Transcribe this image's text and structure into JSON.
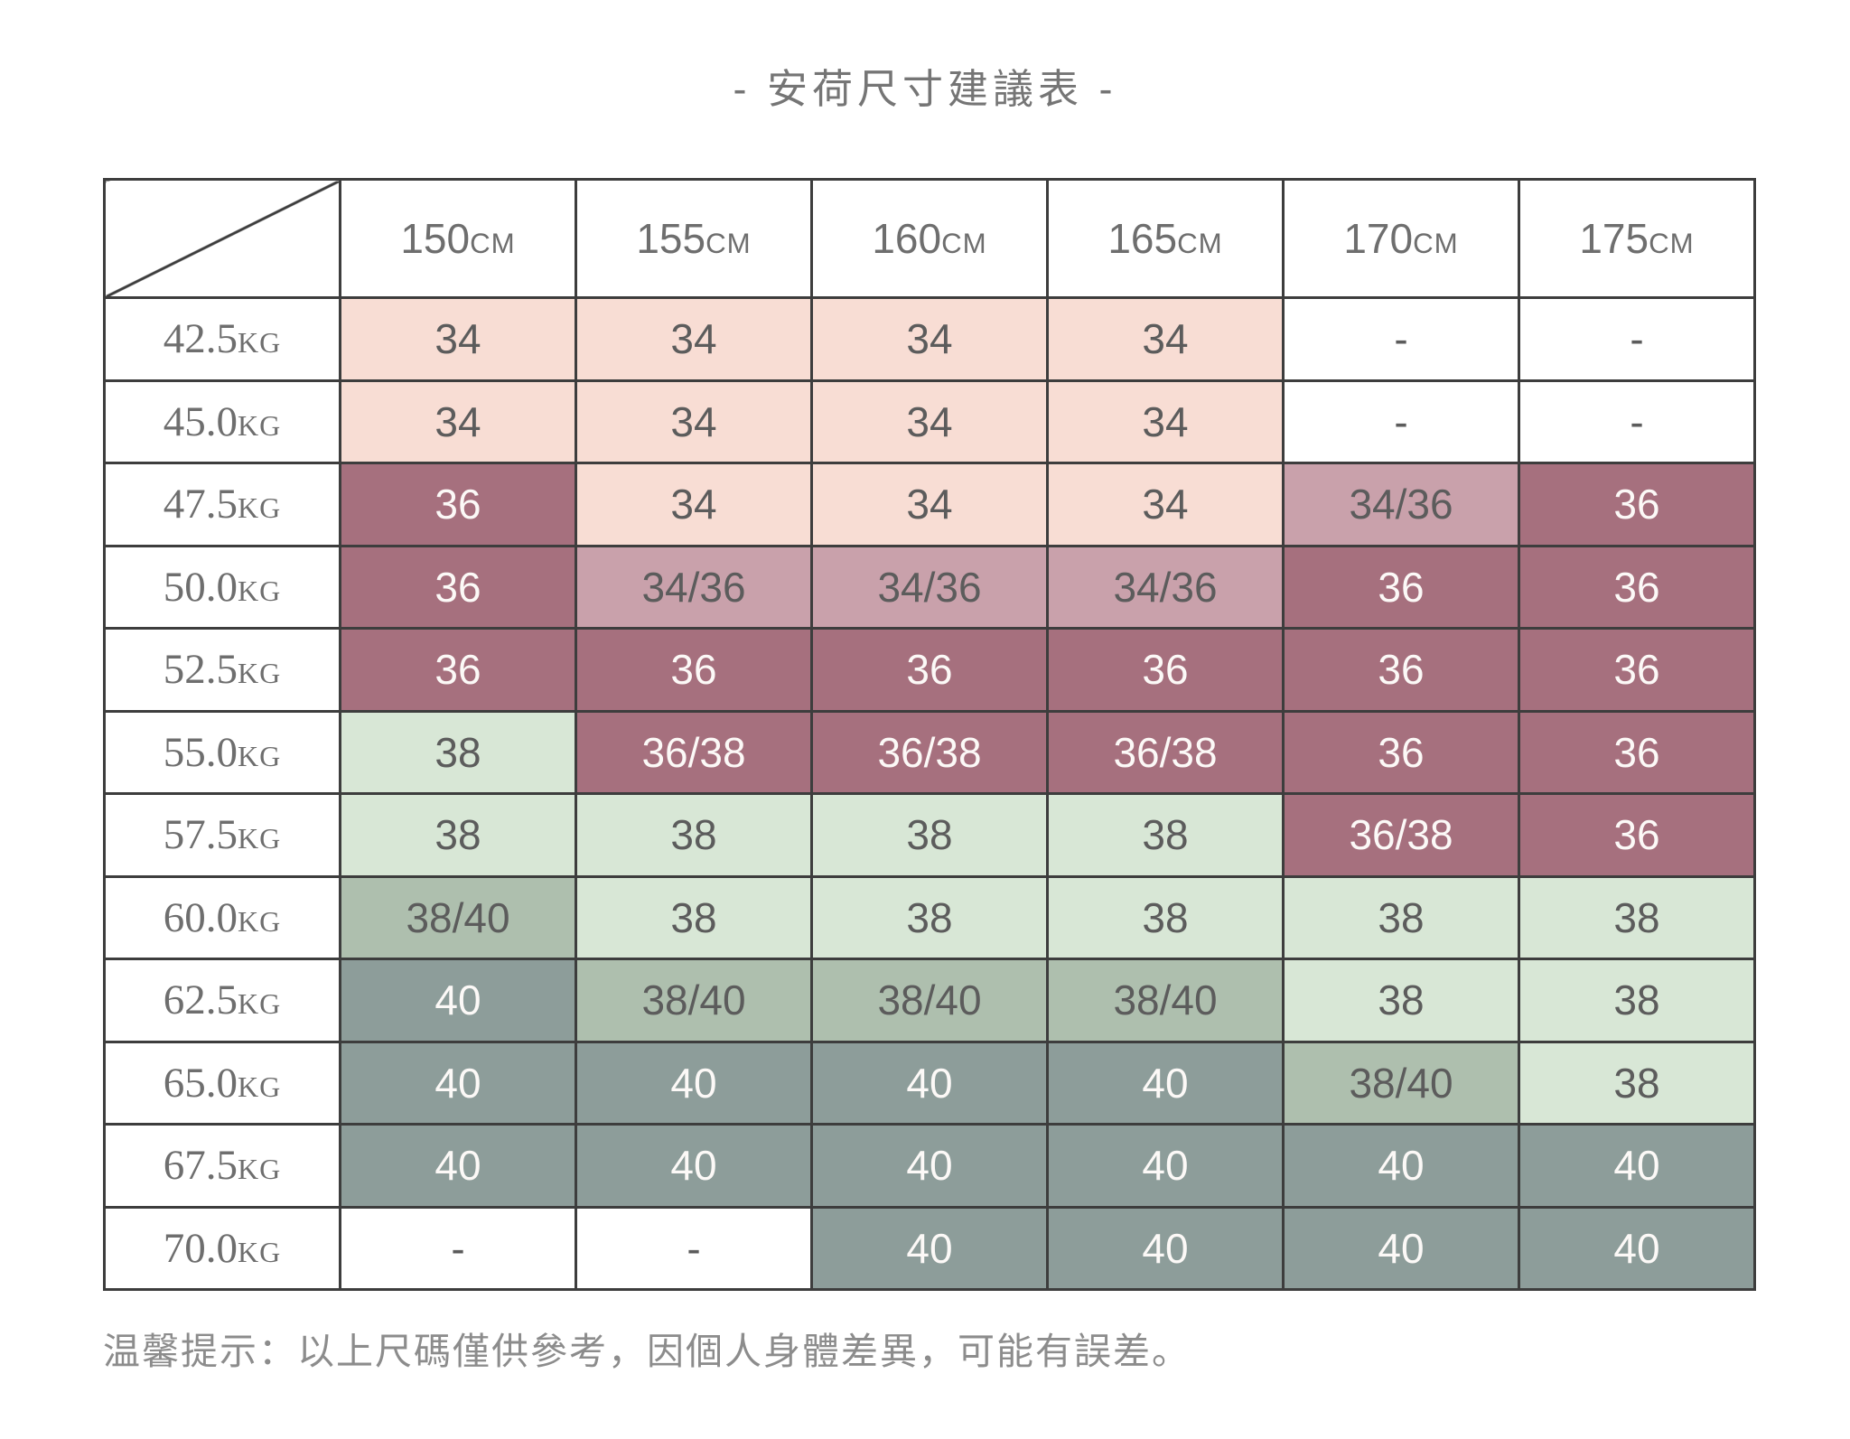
{
  "title": "- 安荷尺寸建議表 -",
  "footer_note": "温馨提示：以上尺碼僅供參考，因個人身體差異，可能有誤差。",
  "palette": {
    "pink": "#f8ddd4",
    "mauve_mid": "#c9a1ab",
    "mauve_dark": "#a6707e",
    "green_light": "#d8e7d6",
    "sage": "#aebfae",
    "gray_green": "#8d9d9a",
    "white": "#ffffff",
    "text_dark": "#5c5c5c",
    "text_light": "#fcf9f7",
    "border": "#3d3d3d"
  },
  "table": {
    "height_headers": [
      {
        "num": "150",
        "unit": "CM"
      },
      {
        "num": "155",
        "unit": "CM"
      },
      {
        "num": "160",
        "unit": "CM"
      },
      {
        "num": "165",
        "unit": "CM"
      },
      {
        "num": "170",
        "unit": "CM"
      },
      {
        "num": "175",
        "unit": "CM"
      }
    ],
    "rows": [
      {
        "weight_num": "42.5",
        "weight_unit": "KG",
        "cells": [
          {
            "v": "34",
            "c": "pink",
            "t": "dark"
          },
          {
            "v": "34",
            "c": "pink",
            "t": "dark"
          },
          {
            "v": "34",
            "c": "pink",
            "t": "dark"
          },
          {
            "v": "34",
            "c": "pink",
            "t": "dark"
          },
          {
            "v": "-",
            "c": "white",
            "t": "dark"
          },
          {
            "v": "-",
            "c": "white",
            "t": "dark"
          }
        ]
      },
      {
        "weight_num": "45.0",
        "weight_unit": "KG",
        "cells": [
          {
            "v": "34",
            "c": "pink",
            "t": "dark"
          },
          {
            "v": "34",
            "c": "pink",
            "t": "dark"
          },
          {
            "v": "34",
            "c": "pink",
            "t": "dark"
          },
          {
            "v": "34",
            "c": "pink",
            "t": "dark"
          },
          {
            "v": "-",
            "c": "white",
            "t": "dark"
          },
          {
            "v": "-",
            "c": "white",
            "t": "dark"
          }
        ]
      },
      {
        "weight_num": "47.5",
        "weight_unit": "KG",
        "cells": [
          {
            "v": "36",
            "c": "mauve_dark",
            "t": "light"
          },
          {
            "v": "34",
            "c": "pink",
            "t": "dark"
          },
          {
            "v": "34",
            "c": "pink",
            "t": "dark"
          },
          {
            "v": "34",
            "c": "pink",
            "t": "dark"
          },
          {
            "v": "34/36",
            "c": "mauve_mid",
            "t": "dark"
          },
          {
            "v": "36",
            "c": "mauve_dark",
            "t": "light"
          }
        ]
      },
      {
        "weight_num": "50.0",
        "weight_unit": "KG",
        "cells": [
          {
            "v": "36",
            "c": "mauve_dark",
            "t": "light"
          },
          {
            "v": "34/36",
            "c": "mauve_mid",
            "t": "dark"
          },
          {
            "v": "34/36",
            "c": "mauve_mid",
            "t": "dark"
          },
          {
            "v": "34/36",
            "c": "mauve_mid",
            "t": "dark"
          },
          {
            "v": "36",
            "c": "mauve_dark",
            "t": "light"
          },
          {
            "v": "36",
            "c": "mauve_dark",
            "t": "light"
          }
        ]
      },
      {
        "weight_num": "52.5",
        "weight_unit": "KG",
        "cells": [
          {
            "v": "36",
            "c": "mauve_dark",
            "t": "light"
          },
          {
            "v": "36",
            "c": "mauve_dark",
            "t": "light"
          },
          {
            "v": "36",
            "c": "mauve_dark",
            "t": "light"
          },
          {
            "v": "36",
            "c": "mauve_dark",
            "t": "light"
          },
          {
            "v": "36",
            "c": "mauve_dark",
            "t": "light"
          },
          {
            "v": "36",
            "c": "mauve_dark",
            "t": "light"
          }
        ]
      },
      {
        "weight_num": "55.0",
        "weight_unit": "KG",
        "cells": [
          {
            "v": "38",
            "c": "green_light",
            "t": "dark"
          },
          {
            "v": "36/38",
            "c": "mauve_dark",
            "t": "light"
          },
          {
            "v": "36/38",
            "c": "mauve_dark",
            "t": "light"
          },
          {
            "v": "36/38",
            "c": "mauve_dark",
            "t": "light"
          },
          {
            "v": "36",
            "c": "mauve_dark",
            "t": "light"
          },
          {
            "v": "36",
            "c": "mauve_dark",
            "t": "light"
          }
        ]
      },
      {
        "weight_num": "57.5",
        "weight_unit": "KG",
        "cells": [
          {
            "v": "38",
            "c": "green_light",
            "t": "dark"
          },
          {
            "v": "38",
            "c": "green_light",
            "t": "dark"
          },
          {
            "v": "38",
            "c": "green_light",
            "t": "dark"
          },
          {
            "v": "38",
            "c": "green_light",
            "t": "dark"
          },
          {
            "v": "36/38",
            "c": "mauve_dark",
            "t": "light"
          },
          {
            "v": "36",
            "c": "mauve_dark",
            "t": "light"
          }
        ]
      },
      {
        "weight_num": "60.0",
        "weight_unit": "KG",
        "cells": [
          {
            "v": "38/40",
            "c": "sage",
            "t": "dark"
          },
          {
            "v": "38",
            "c": "green_light",
            "t": "dark"
          },
          {
            "v": "38",
            "c": "green_light",
            "t": "dark"
          },
          {
            "v": "38",
            "c": "green_light",
            "t": "dark"
          },
          {
            "v": "38",
            "c": "green_light",
            "t": "dark"
          },
          {
            "v": "38",
            "c": "green_light",
            "t": "dark"
          }
        ]
      },
      {
        "weight_num": "62.5",
        "weight_unit": "KG",
        "cells": [
          {
            "v": "40",
            "c": "gray_green",
            "t": "light"
          },
          {
            "v": "38/40",
            "c": "sage",
            "t": "dark"
          },
          {
            "v": "38/40",
            "c": "sage",
            "t": "dark"
          },
          {
            "v": "38/40",
            "c": "sage",
            "t": "dark"
          },
          {
            "v": "38",
            "c": "green_light",
            "t": "dark"
          },
          {
            "v": "38",
            "c": "green_light",
            "t": "dark"
          }
        ]
      },
      {
        "weight_num": "65.0",
        "weight_unit": "KG",
        "cells": [
          {
            "v": "40",
            "c": "gray_green",
            "t": "light"
          },
          {
            "v": "40",
            "c": "gray_green",
            "t": "light"
          },
          {
            "v": "40",
            "c": "gray_green",
            "t": "light"
          },
          {
            "v": "40",
            "c": "gray_green",
            "t": "light"
          },
          {
            "v": "38/40",
            "c": "sage",
            "t": "dark"
          },
          {
            "v": "38",
            "c": "green_light",
            "t": "dark"
          }
        ]
      },
      {
        "weight_num": "67.5",
        "weight_unit": "KG",
        "cells": [
          {
            "v": "40",
            "c": "gray_green",
            "t": "light"
          },
          {
            "v": "40",
            "c": "gray_green",
            "t": "light"
          },
          {
            "v": "40",
            "c": "gray_green",
            "t": "light"
          },
          {
            "v": "40",
            "c": "gray_green",
            "t": "light"
          },
          {
            "v": "40",
            "c": "gray_green",
            "t": "light"
          },
          {
            "v": "40",
            "c": "gray_green",
            "t": "light"
          }
        ]
      },
      {
        "weight_num": "70.0",
        "weight_unit": "KG",
        "cells": [
          {
            "v": "-",
            "c": "white",
            "t": "dark"
          },
          {
            "v": "-",
            "c": "white",
            "t": "dark"
          },
          {
            "v": "40",
            "c": "gray_green",
            "t": "light"
          },
          {
            "v": "40",
            "c": "gray_green",
            "t": "light"
          },
          {
            "v": "40",
            "c": "gray_green",
            "t": "light"
          },
          {
            "v": "40",
            "c": "gray_green",
            "t": "light"
          }
        ]
      }
    ]
  },
  "chart_data": {
    "type": "table",
    "title": "安荷尺寸建議表",
    "columns": [
      "150CM",
      "155CM",
      "160CM",
      "165CM",
      "170CM",
      "175CM"
    ],
    "rows": [
      "42.5KG",
      "45.0KG",
      "47.5KG",
      "50.0KG",
      "52.5KG",
      "55.0KG",
      "57.5KG",
      "60.0KG",
      "62.5KG",
      "65.0KG",
      "67.5KG",
      "70.0KG"
    ],
    "values": [
      [
        "34",
        "34",
        "34",
        "34",
        "-",
        "-"
      ],
      [
        "34",
        "34",
        "34",
        "34",
        "-",
        "-"
      ],
      [
        "36",
        "34",
        "34",
        "34",
        "34/36",
        "36"
      ],
      [
        "36",
        "34/36",
        "34/36",
        "34/36",
        "36",
        "36"
      ],
      [
        "36",
        "36",
        "36",
        "36",
        "36",
        "36"
      ],
      [
        "38",
        "36/38",
        "36/38",
        "36/38",
        "36",
        "36"
      ],
      [
        "38",
        "38",
        "38",
        "38",
        "36/38",
        "36"
      ],
      [
        "38/40",
        "38",
        "38",
        "38",
        "38",
        "38"
      ],
      [
        "40",
        "38/40",
        "38/40",
        "38/40",
        "38",
        "38"
      ],
      [
        "40",
        "40",
        "40",
        "40",
        "38/40",
        "38"
      ],
      [
        "40",
        "40",
        "40",
        "40",
        "40",
        "40"
      ],
      [
        "-",
        "-",
        "40",
        "40",
        "40",
        "40"
      ]
    ],
    "note": "温馨提示：以上尺碼僅供參考，因個人身體差異，可能有誤差。"
  }
}
